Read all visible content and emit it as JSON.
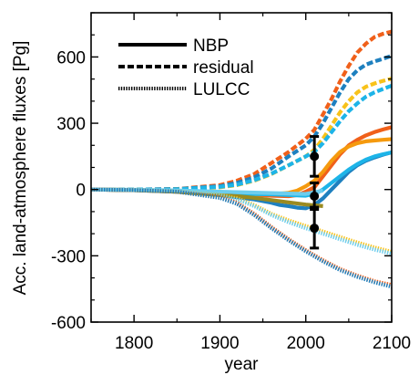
{
  "chart_data": {
    "type": "line",
    "title": "",
    "xlabel": "year",
    "ylabel": "Acc. land-atmosphere fluxes [Pg]",
    "xlim": [
      1750,
      2100
    ],
    "ylim": [
      -600,
      800
    ],
    "xticks": [
      1800,
      1900,
      2000,
      2100
    ],
    "yticks": [
      -600,
      -300,
      0,
      300,
      600
    ],
    "xtick_labels": [
      "1800",
      "1900",
      "2000",
      "2100"
    ],
    "ytick_labels": [
      "-600",
      "-300",
      "0",
      "300",
      "600"
    ],
    "grid": false,
    "legend": {
      "position": "top-left",
      "entries": [
        {
          "label": "NBP",
          "style": "solid"
        },
        {
          "label": "residual",
          "style": "dashed"
        },
        {
          "label": "LULCC",
          "style": "dotted"
        }
      ]
    },
    "colors": {
      "red_orange": "#f0601a",
      "orange": "#f59a0e",
      "yellow_orange": "#f8c21a",
      "steel_blue": "#1e80bf",
      "sky_blue": "#1db4e8",
      "pale_blue": "#6ccdee",
      "olive": "#9a8a20"
    },
    "series": [
      {
        "color": "#f0601a",
        "style": "dashed",
        "points": [
          [
            1750,
            0
          ],
          [
            1800,
            0
          ],
          [
            1850,
            2
          ],
          [
            1900,
            20
          ],
          [
            1920,
            40
          ],
          [
            1940,
            70
          ],
          [
            1960,
            120
          ],
          [
            1980,
            170
          ],
          [
            2000,
            230
          ],
          [
            2010,
            270
          ],
          [
            2020,
            340
          ],
          [
            2030,
            410
          ],
          [
            2040,
            490
          ],
          [
            2050,
            560
          ],
          [
            2060,
            620
          ],
          [
            2070,
            660
          ],
          [
            2080,
            690
          ],
          [
            2090,
            705
          ],
          [
            2100,
            715
          ]
        ]
      },
      {
        "color": "#1e80bf",
        "style": "dashed",
        "points": [
          [
            1750,
            0
          ],
          [
            1800,
            0
          ],
          [
            1850,
            2
          ],
          [
            1900,
            15
          ],
          [
            1920,
            30
          ],
          [
            1940,
            55
          ],
          [
            1960,
            95
          ],
          [
            1980,
            150
          ],
          [
            2000,
            200
          ],
          [
            2010,
            240
          ],
          [
            2020,
            300
          ],
          [
            2030,
            370
          ],
          [
            2040,
            440
          ],
          [
            2050,
            500
          ],
          [
            2060,
            540
          ],
          [
            2070,
            565
          ],
          [
            2080,
            580
          ],
          [
            2090,
            592
          ],
          [
            2100,
            605
          ]
        ]
      },
      {
        "color": "#f8c21a",
        "style": "dashed",
        "points": [
          [
            1750,
            0
          ],
          [
            1800,
            0
          ],
          [
            1850,
            1
          ],
          [
            1900,
            10
          ],
          [
            1920,
            20
          ],
          [
            1940,
            40
          ],
          [
            1960,
            70
          ],
          [
            1980,
            110
          ],
          [
            2000,
            150
          ],
          [
            2010,
            180
          ],
          [
            2020,
            230
          ],
          [
            2030,
            290
          ],
          [
            2040,
            350
          ],
          [
            2050,
            400
          ],
          [
            2060,
            440
          ],
          [
            2070,
            465
          ],
          [
            2080,
            480
          ],
          [
            2090,
            492
          ],
          [
            2100,
            502
          ]
        ]
      },
      {
        "color": "#1db4e8",
        "style": "dashed",
        "points": [
          [
            1750,
            0
          ],
          [
            1800,
            0
          ],
          [
            1850,
            1
          ],
          [
            1900,
            12
          ],
          [
            1920,
            22
          ],
          [
            1940,
            42
          ],
          [
            1960,
            72
          ],
          [
            1980,
            110
          ],
          [
            2000,
            150
          ],
          [
            2010,
            170
          ],
          [
            2020,
            210
          ],
          [
            2030,
            260
          ],
          [
            2040,
            310
          ],
          [
            2050,
            355
          ],
          [
            2060,
            390
          ],
          [
            2070,
            420
          ],
          [
            2080,
            440
          ],
          [
            2090,
            455
          ],
          [
            2100,
            470
          ]
        ]
      },
      {
        "color": "#f0601a",
        "style": "solid",
        "points": [
          [
            1750,
            0
          ],
          [
            1800,
            -2
          ],
          [
            1850,
            -8
          ],
          [
            1900,
            -20
          ],
          [
            1920,
            -22
          ],
          [
            1940,
            -24
          ],
          [
            1960,
            -28
          ],
          [
            1980,
            -30
          ],
          [
            1990,
            -25
          ],
          [
            2000,
            -10
          ],
          [
            2010,
            10
          ],
          [
            2020,
            60
          ],
          [
            2030,
            110
          ],
          [
            2040,
            160
          ],
          [
            2050,
            200
          ],
          [
            2060,
            225
          ],
          [
            2070,
            245
          ],
          [
            2080,
            260
          ],
          [
            2090,
            272
          ],
          [
            2100,
            282
          ]
        ]
      },
      {
        "color": "#f59a0e",
        "style": "solid",
        "points": [
          [
            1750,
            0
          ],
          [
            1800,
            -2
          ],
          [
            1850,
            -7
          ],
          [
            1900,
            -18
          ],
          [
            1920,
            -20
          ],
          [
            1940,
            -22
          ],
          [
            1960,
            -22
          ],
          [
            1980,
            -15
          ],
          [
            1990,
            -5
          ],
          [
            2000,
            15
          ],
          [
            2010,
            40
          ],
          [
            2020,
            80
          ],
          [
            2030,
            130
          ],
          [
            2040,
            170
          ],
          [
            2050,
            195
          ],
          [
            2060,
            210
          ],
          [
            2070,
            218
          ],
          [
            2080,
            222
          ],
          [
            2090,
            225
          ],
          [
            2100,
            228
          ]
        ]
      },
      {
        "color": "#1e80bf",
        "style": "solid",
        "points": [
          [
            1750,
            0
          ],
          [
            1800,
            -3
          ],
          [
            1850,
            -10
          ],
          [
            1900,
            -25
          ],
          [
            1920,
            -35
          ],
          [
            1940,
            -45
          ],
          [
            1960,
            -60
          ],
          [
            1970,
            -70
          ],
          [
            1980,
            -75
          ],
          [
            1990,
            -82
          ],
          [
            2000,
            -85
          ],
          [
            2010,
            -70
          ],
          [
            2020,
            -40
          ],
          [
            2030,
            0
          ],
          [
            2040,
            40
          ],
          [
            2050,
            80
          ],
          [
            2060,
            110
          ],
          [
            2070,
            130
          ],
          [
            2080,
            145
          ],
          [
            2090,
            158
          ],
          [
            2100,
            168
          ]
        ]
      },
      {
        "color": "#1db4e8",
        "style": "solid",
        "points": [
          [
            1750,
            0
          ],
          [
            1800,
            -2
          ],
          [
            1850,
            -6
          ],
          [
            1900,
            -15
          ],
          [
            1920,
            -18
          ],
          [
            1940,
            -20
          ],
          [
            1960,
            -22
          ],
          [
            1980,
            -25
          ],
          [
            2000,
            -28
          ],
          [
            2010,
            -20
          ],
          [
            2020,
            0
          ],
          [
            2030,
            30
          ],
          [
            2040,
            60
          ],
          [
            2050,
            90
          ],
          [
            2060,
            115
          ],
          [
            2070,
            135
          ],
          [
            2080,
            150
          ],
          [
            2090,
            160
          ],
          [
            2100,
            168
          ]
        ]
      },
      {
        "color": "#9a8a20",
        "style": "solid",
        "points": [
          [
            1750,
            0
          ],
          [
            1800,
            -3
          ],
          [
            1850,
            -10
          ],
          [
            1900,
            -25
          ],
          [
            1920,
            -30
          ],
          [
            1940,
            -38
          ],
          [
            1960,
            -48
          ],
          [
            1980,
            -58
          ],
          [
            2000,
            -68
          ],
          [
            2020,
            -75
          ]
        ]
      },
      {
        "color": "#6ccdee",
        "style": "solid",
        "points": [
          [
            1750,
            0
          ],
          [
            1800,
            -1
          ],
          [
            1850,
            -4
          ],
          [
            1900,
            -10
          ],
          [
            1920,
            -12
          ],
          [
            1940,
            -14
          ],
          [
            1960,
            -16
          ],
          [
            1980,
            -18
          ],
          [
            2000,
            -20
          ],
          [
            2020,
            -5
          ]
        ]
      },
      {
        "color": "#f8c21a",
        "style": "dotted",
        "points": [
          [
            1750,
            0
          ],
          [
            1800,
            -2
          ],
          [
            1850,
            -8
          ],
          [
            1900,
            -25
          ],
          [
            1920,
            -40
          ],
          [
            1940,
            -70
          ],
          [
            1960,
            -110
          ],
          [
            1980,
            -140
          ],
          [
            2000,
            -165
          ],
          [
            2020,
            -190
          ],
          [
            2040,
            -215
          ],
          [
            2060,
            -240
          ],
          [
            2080,
            -262
          ],
          [
            2100,
            -282
          ]
        ]
      },
      {
        "color": "#6ccdee",
        "style": "dotted",
        "points": [
          [
            1750,
            0
          ],
          [
            1800,
            -2
          ],
          [
            1850,
            -8
          ],
          [
            1900,
            -28
          ],
          [
            1920,
            -45
          ],
          [
            1940,
            -75
          ],
          [
            1960,
            -115
          ],
          [
            1980,
            -148
          ],
          [
            2000,
            -175
          ],
          [
            2020,
            -200
          ],
          [
            2040,
            -225
          ],
          [
            2060,
            -250
          ],
          [
            2080,
            -272
          ],
          [
            2100,
            -290
          ]
        ]
      },
      {
        "color": "#f0601a",
        "style": "dotted",
        "points": [
          [
            1750,
            0
          ],
          [
            1800,
            -3
          ],
          [
            1850,
            -10
          ],
          [
            1900,
            -35
          ],
          [
            1920,
            -60
          ],
          [
            1940,
            -110
          ],
          [
            1960,
            -170
          ],
          [
            1980,
            -225
          ],
          [
            2000,
            -275
          ],
          [
            2020,
            -320
          ],
          [
            2040,
            -360
          ],
          [
            2060,
            -390
          ],
          [
            2080,
            -415
          ],
          [
            2100,
            -432
          ]
        ]
      },
      {
        "color": "#1e80bf",
        "style": "dotted",
        "points": [
          [
            1750,
            0
          ],
          [
            1800,
            -3
          ],
          [
            1850,
            -10
          ],
          [
            1900,
            -38
          ],
          [
            1920,
            -65
          ],
          [
            1940,
            -115
          ],
          [
            1960,
            -175
          ],
          [
            1980,
            -230
          ],
          [
            2000,
            -280
          ],
          [
            2020,
            -325
          ],
          [
            2040,
            -365
          ],
          [
            2060,
            -395
          ],
          [
            2080,
            -420
          ],
          [
            2100,
            -440
          ]
        ]
      }
    ],
    "error_bars": [
      {
        "x": 2010,
        "y": 150,
        "low": 60,
        "high": 240
      },
      {
        "x": 2010,
        "y": -30,
        "low": -90,
        "high": 30
      },
      {
        "x": 2010,
        "y": -175,
        "low": -265,
        "high": -80
      }
    ]
  }
}
